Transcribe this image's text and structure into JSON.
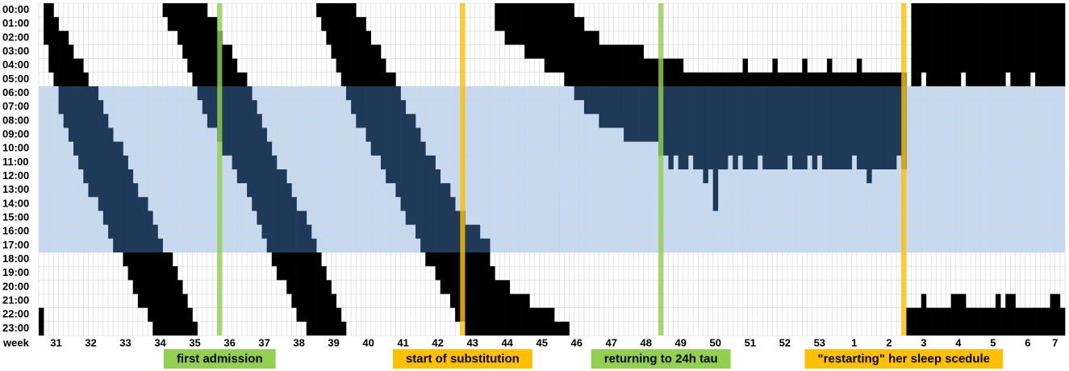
{
  "chart_data": {
    "type": "actogram",
    "hours": [
      "00:00",
      "01:00",
      "02:00",
      "03:00",
      "04:00",
      "05:00",
      "06:00",
      "07:00",
      "08:00",
      "09:00",
      "10:00",
      "11:00",
      "12:00",
      "13:00",
      "14:00",
      "15:00",
      "16:00",
      "17:00",
      "18:00",
      "19:00",
      "20:00",
      "21:00",
      "22:00",
      "23:00"
    ],
    "x_label": "week",
    "weeks": [
      31,
      32,
      33,
      34,
      35,
      36,
      37,
      38,
      39,
      40,
      41,
      42,
      43,
      44,
      45,
      46,
      47,
      48,
      49,
      50,
      51,
      52,
      53,
      1,
      2,
      3,
      4,
      5,
      6,
      7
    ],
    "onset": [
      22,
      null,
      0,
      1,
      2,
      2,
      3,
      4,
      4,
      5,
      6,
      6,
      7,
      8,
      9,
      10,
      10,
      11,
      12,
      13,
      14,
      14,
      15,
      16,
      17,
      18,
      18,
      19,
      20,
      21,
      22,
      23,
      null,
      0,
      1,
      1,
      2,
      3,
      3,
      4,
      5,
      5,
      6,
      7,
      8,
      9,
      10,
      11,
      12,
      12,
      13,
      14,
      15,
      15,
      16,
      17,
      18,
      19,
      20,
      21,
      22,
      23,
      null,
      0,
      1,
      1,
      2,
      3,
      3,
      4,
      5,
      5,
      6,
      7,
      8,
      8,
      9,
      10,
      11,
      11,
      12,
      13,
      13,
      14,
      15,
      15,
      16,
      16,
      16,
      17,
      17,
      19,
      20,
      20,
      20,
      21,
      21,
      21,
      21,
      22,
      22,
      22,
      22,
      22,
      23,
      23,
      23,
      null,
      1,
      1,
      2,
      2,
      2,
      3,
      3,
      3,
      3,
      3,
      3,
      3,
      3,
      3,
      4,
      4,
      4,
      4,
      4,
      4,
      4,
      4,
      5,
      5,
      5,
      5,
      5,
      5,
      5,
      5,
      5,
      5,
      5,
      5,
      4,
      5,
      5,
      5,
      5,
      5,
      4,
      5,
      5,
      5,
      5,
      5,
      4,
      5,
      5,
      5,
      5,
      4,
      5,
      5,
      5,
      5,
      5,
      4,
      5,
      5,
      5,
      5,
      5,
      5,
      5,
      5,
      5,
      22,
      22,
      22,
      21,
      22,
      22,
      22,
      22,
      22,
      21,
      21,
      21,
      22,
      22,
      22,
      22,
      22,
      22,
      21,
      22,
      21,
      21,
      22,
      22,
      22,
      22,
      22,
      22,
      22,
      21,
      21,
      22
    ],
    "end": [
      27,
      null,
      5,
      6,
      8,
      9,
      10,
      11,
      12,
      13,
      14,
      14,
      15,
      16,
      17,
      18,
      18,
      19,
      20,
      21,
      22,
      22,
      23,
      24,
      25,
      26,
      26,
      27,
      28,
      29,
      30,
      31,
      null,
      8,
      9,
      9,
      10,
      11,
      11,
      12,
      13,
      13,
      14,
      15,
      16,
      17,
      18,
      19,
      20,
      20,
      21,
      22,
      23,
      23,
      24,
      25,
      26,
      27,
      28,
      29,
      30,
      31,
      null,
      8,
      9,
      9,
      10,
      11,
      11,
      12,
      13,
      13,
      14,
      15,
      16,
      16,
      17,
      18,
      19,
      19,
      20,
      21,
      21,
      22,
      23,
      23,
      24,
      24,
      24,
      24,
      24,
      26,
      26,
      27,
      27,
      27,
      27,
      28,
      28,
      28,
      28,
      29,
      29,
      29,
      29,
      30,
      30,
      null,
      7,
      7,
      8,
      8,
      8,
      9,
      9,
      9,
      9,
      9,
      10,
      10,
      10,
      10,
      10,
      10,
      10,
      11,
      11,
      12,
      11,
      12,
      12,
      11,
      12,
      12,
      13,
      12,
      15,
      12,
      12,
      11,
      12,
      11,
      12,
      12,
      12,
      11,
      12,
      12,
      12,
      12,
      12,
      11,
      12,
      12,
      12,
      11,
      12,
      11,
      12,
      12,
      12,
      12,
      12,
      12,
      11,
      12,
      12,
      13,
      12,
      12,
      12,
      12,
      12,
      11,
      12,
      30,
      30,
      29,
      30,
      30,
      30,
      30,
      30,
      30,
      30,
      29,
      30,
      30,
      30,
      30,
      30,
      30,
      30,
      30,
      29,
      30,
      30,
      30,
      30,
      29,
      30,
      30,
      30,
      30,
      30,
      30,
      30
    ],
    "shaded_hours": [
      6,
      18
    ],
    "band_color": "#c5d9f1",
    "sleep_color": "#000000",
    "sleep_in_band_color": "#1f3a58",
    "events": [
      {
        "label": "first admission",
        "day": 36,
        "color": "#92d050"
      },
      {
        "label": "start of substitution",
        "day": 85,
        "color": "#ffc000"
      },
      {
        "label": "returning to 24h tau",
        "day": 125,
        "color": "#92d050"
      },
      {
        "label": "\"restarting\" her sleep scedule",
        "day": 174,
        "color": "#ffc000"
      }
    ]
  }
}
